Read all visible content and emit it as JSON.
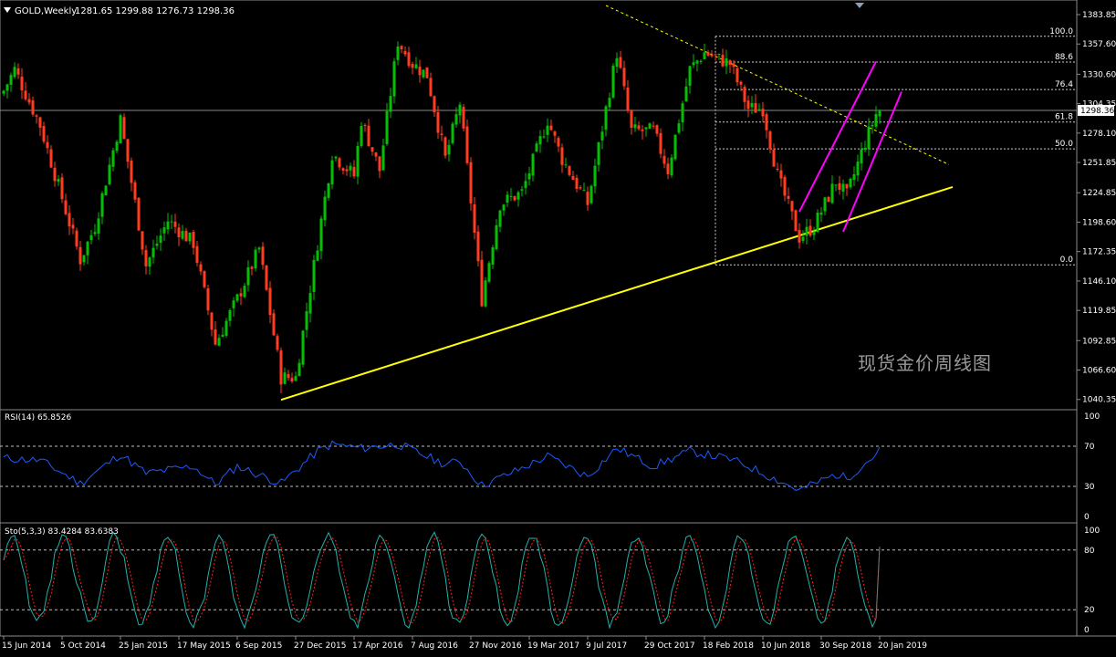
{
  "header": {
    "symbol_timeframe": "GOLD,Weekly",
    "ohlc": "1281.65 1299.88 1276.73 1298.36"
  },
  "watermark": "现货金价周线图",
  "colors": {
    "background": "#000000",
    "bull": "#00c000",
    "bear": "#ff3c1e",
    "trendline": "#ffff00",
    "channel": "#ff00ff",
    "rsi": "#1e5aff",
    "stoch_main": "#20b2aa",
    "stoch_signal": "#ff2020",
    "grid_text": "#ffffff",
    "price_tag_bg": "#ffffff"
  },
  "price_axis": {
    "labels": [
      "1383.85",
      "1357.60",
      "1330.60",
      "1304.35",
      "1278.10",
      "1251.85",
      "1224.85",
      "1198.60",
      "1172.35",
      "1146.10",
      "1119.85",
      "1092.85",
      "1066.60",
      "1040.35"
    ],
    "current_price": "1298.36"
  },
  "fibonacci": {
    "levels": [
      "100.0",
      "88.6",
      "76.4",
      "61.8",
      "50.0",
      "0.0"
    ],
    "values": [
      1364.5,
      1341.5,
      1317.0,
      1288.0,
      1264.0,
      1160.5
    ]
  },
  "time_axis": [
    "15 Jun 2014",
    "5 Oct 2014",
    "25 Jan 2015",
    "17 May 2015",
    "6 Sep 2015",
    "27 Dec 2015",
    "17 Apr 2016",
    "7 Aug 2016",
    "27 Nov 2016",
    "19 Mar 2017",
    "9 Jul 2017",
    "29 Oct 2017",
    "18 Feb 2018",
    "10 Jun 2018",
    "30 Sep 2018",
    "20 Jan 2019"
  ],
  "rsi_panel": {
    "label": "RSI(14) 65.8526",
    "levels": [
      "100",
      "70",
      "30",
      "0"
    ]
  },
  "stoch_panel": {
    "label": "Sto(5,3,3) 83.4284 83.6383",
    "levels": [
      "100",
      "80",
      "20",
      "0"
    ]
  },
  "chart_data": {
    "type": "candlestick",
    "title": "GOLD,Weekly",
    "ylim": [
      1032,
      1392
    ],
    "x_start": "15 Jun 2014",
    "x_end": "20 Jan 2019",
    "close_anchors": [
      [
        "2014-06-15",
        1316
      ],
      [
        "2014-07-06",
        1335
      ],
      [
        "2014-08-24",
        1285
      ],
      [
        "2014-10-05",
        1220
      ],
      [
        "2014-11-09",
        1165
      ],
      [
        "2014-12-07",
        1195
      ],
      [
        "2015-01-25",
        1290
      ],
      [
        "2015-03-15",
        1160
      ],
      [
        "2015-04-26",
        1200
      ],
      [
        "2015-06-14",
        1180
      ],
      [
        "2015-07-26",
        1090
      ],
      [
        "2015-09-06",
        1130
      ],
      [
        "2015-10-18",
        1175
      ],
      [
        "2015-11-29",
        1060
      ],
      [
        "2015-12-27",
        1060
      ],
      [
        "2016-02-07",
        1180
      ],
      [
        "2016-03-06",
        1260
      ],
      [
        "2016-04-17",
        1240
      ],
      [
        "2016-05-01",
        1290
      ],
      [
        "2016-06-05",
        1245
      ],
      [
        "2016-07-10",
        1360
      ],
      [
        "2016-08-07",
        1340
      ],
      [
        "2016-09-04",
        1330
      ],
      [
        "2016-10-09",
        1255
      ],
      [
        "2016-11-06",
        1305
      ],
      [
        "2016-12-18",
        1130
      ],
      [
        "2017-01-22",
        1215
      ],
      [
        "2017-03-05",
        1225
      ],
      [
        "2017-04-23",
        1290
      ],
      [
        "2017-05-21",
        1255
      ],
      [
        "2017-07-09",
        1215
      ],
      [
        "2017-09-03",
        1350
      ],
      [
        "2017-10-01",
        1280
      ],
      [
        "2017-11-12",
        1280
      ],
      [
        "2017-12-10",
        1245
      ],
      [
        "2018-01-21",
        1335
      ],
      [
        "2018-02-18",
        1350
      ],
      [
        "2018-04-08",
        1340
      ],
      [
        "2018-05-13",
        1300
      ],
      [
        "2018-06-10",
        1300
      ],
      [
        "2018-07-08",
        1240
      ],
      [
        "2018-08-19",
        1185
      ],
      [
        "2018-09-16",
        1195
      ],
      [
        "2018-10-28",
        1235
      ],
      [
        "2018-11-18",
        1222
      ],
      [
        "2018-12-23",
        1270
      ],
      [
        "2019-01-13",
        1295
      ],
      [
        "2019-01-20",
        1298
      ]
    ],
    "trendline_support": [
      [
        "2015-11-29",
        1040
      ],
      [
        "2019-06-09",
        1230
      ]
    ],
    "trendline_resistance": [
      [
        "2017-08-13",
        1392
      ],
      [
        "2019-06-02",
        1250
      ]
    ],
    "channel_upper": [
      [
        "2018-08-19",
        1208
      ],
      [
        "2019-01-13",
        1342
      ]
    ],
    "channel_lower": [
      [
        "2018-11-11",
        1190
      ],
      [
        "2019-03-03",
        1315
      ]
    ],
    "rsi": {
      "name": "RSI(14)",
      "last": 65.8526,
      "ylim": [
        0,
        100
      ],
      "levels": [
        70,
        30
      ],
      "anchors": [
        [
          "2014-06-15",
          58
        ],
        [
          "2014-08-24",
          56
        ],
        [
          "2014-11-09",
          33
        ],
        [
          "2015-01-25",
          62
        ],
        [
          "2015-03-15",
          43
        ],
        [
          "2015-06-14",
          50
        ],
        [
          "2015-07-26",
          32
        ],
        [
          "2015-09-06",
          50
        ],
        [
          "2015-11-29",
          33
        ],
        [
          "2016-02-07",
          65
        ],
        [
          "2016-03-06",
          72
        ],
        [
          "2016-05-01",
          68
        ],
        [
          "2016-07-10",
          72
        ],
        [
          "2016-10-09",
          52
        ],
        [
          "2016-11-06",
          55
        ],
        [
          "2016-12-18",
          31
        ],
        [
          "2017-03-05",
          48
        ],
        [
          "2017-04-23",
          60
        ],
        [
          "2017-07-09",
          40
        ],
        [
          "2017-09-03",
          68
        ],
        [
          "2017-11-12",
          50
        ],
        [
          "2018-01-21",
          65
        ],
        [
          "2018-04-08",
          57
        ],
        [
          "2018-05-13",
          50
        ],
        [
          "2018-08-19",
          26
        ],
        [
          "2018-10-28",
          42
        ],
        [
          "2018-11-18",
          38
        ],
        [
          "2019-01-13",
          62
        ],
        [
          "2019-01-20",
          65.85
        ]
      ]
    },
    "stochastic": {
      "name": "Sto(5,3,3)",
      "main_last": 83.4284,
      "signal_last": 83.6383,
      "ylim": [
        0,
        100
      ],
      "levels": [
        80,
        20
      ]
    }
  }
}
